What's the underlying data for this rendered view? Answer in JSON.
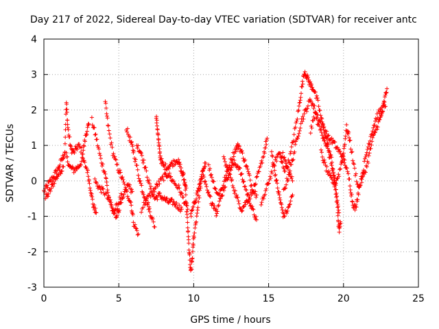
{
  "chart_data": {
    "type": "scatter",
    "title": "Day 217 of 2022, Sidereal Day-to-day VTEC variation (SDTVAR) for receiver antc",
    "xlabel": "GPS time / hours",
    "ylabel": "SDTVAR / TECUs",
    "xlim": [
      0,
      25
    ],
    "ylim": [
      -3,
      4
    ],
    "xticks": [
      0,
      5,
      10,
      15,
      20,
      25
    ],
    "yticks": [
      -3,
      -2,
      -1,
      0,
      1,
      2,
      3,
      4
    ],
    "grid": true,
    "marker": "+",
    "color": "#ff0000",
    "series": [
      {
        "name": "SDTVAR",
        "tracks": [
          [
            [
              0,
              -0.3
            ],
            [
              0.3,
              -0.1
            ],
            [
              0.6,
              0.1
            ],
            [
              0.9,
              0.3
            ],
            [
              1.2,
              0.6
            ],
            [
              1.4,
              0.8
            ]
          ],
          [
            [
              0.1,
              -0.5
            ],
            [
              0.4,
              -0.3
            ],
            [
              0.7,
              0.0
            ],
            [
              1.0,
              0.2
            ],
            [
              1.3,
              0.4
            ]
          ],
          [
            [
              1.4,
              0.9
            ],
            [
              1.5,
              2.2
            ],
            [
              1.6,
              1.5
            ],
            [
              1.8,
              0.9
            ],
            [
              2.0,
              0.8
            ],
            [
              2.3,
              1.0
            ],
            [
              2.6,
              0.8
            ],
            [
              2.8,
              1.3
            ],
            [
              3.0,
              1.6
            ]
          ],
          [
            [
              1.5,
              0.7
            ],
            [
              1.7,
              0.4
            ],
            [
              2.0,
              0.3
            ],
            [
              2.3,
              0.4
            ],
            [
              2.6,
              0.6
            ],
            [
              2.9,
              0.3
            ],
            [
              3.1,
              -0.2
            ],
            [
              3.3,
              -0.7
            ],
            [
              3.5,
              -0.9
            ]
          ],
          [
            [
              3.2,
              1.7
            ],
            [
              3.5,
              1.2
            ],
            [
              3.8,
              0.6
            ],
            [
              4.1,
              0.2
            ],
            [
              4.3,
              -0.4
            ],
            [
              4.6,
              -0.9
            ],
            [
              4.9,
              -0.7
            ],
            [
              5.2,
              -0.4
            ]
          ],
          [
            [
              4.1,
              2.2
            ],
            [
              4.3,
              1.5
            ],
            [
              4.6,
              0.8
            ],
            [
              4.9,
              0.4
            ],
            [
              5.2,
              0.1
            ],
            [
              5.5,
              -0.3
            ],
            [
              5.8,
              -0.6
            ],
            [
              6.0,
              -1.2
            ],
            [
              6.3,
              -1.5
            ]
          ],
          [
            [
              3.4,
              0.0
            ],
            [
              3.7,
              -0.2
            ],
            [
              4.0,
              -0.3
            ],
            [
              4.4,
              -0.6
            ],
            [
              4.8,
              -1.0
            ],
            [
              5.0,
              -0.8
            ],
            [
              5.3,
              -0.5
            ],
            [
              5.6,
              -0.1
            ],
            [
              5.9,
              -0.3
            ]
          ],
          [
            [
              5.5,
              1.5
            ],
            [
              5.8,
              1.1
            ],
            [
              6.0,
              0.8
            ],
            [
              6.3,
              0.2
            ],
            [
              6.6,
              -0.3
            ],
            [
              6.9,
              -0.6
            ],
            [
              7.1,
              -0.9
            ],
            [
              7.4,
              -1.3
            ]
          ],
          [
            [
              6.2,
              1.0
            ],
            [
              6.5,
              0.8
            ],
            [
              6.8,
              0.3
            ],
            [
              7.1,
              -0.2
            ],
            [
              7.4,
              -0.5
            ],
            [
              7.7,
              -0.4
            ],
            [
              8.0,
              -0.5
            ],
            [
              8.3,
              -0.6
            ],
            [
              8.6,
              -0.6
            ],
            [
              8.9,
              -0.7
            ],
            [
              9.2,
              -0.8
            ]
          ],
          [
            [
              7.5,
              1.8
            ],
            [
              7.6,
              1.4
            ],
            [
              7.7,
              0.9
            ],
            [
              7.8,
              0.6
            ],
            [
              8.0,
              0.4
            ],
            [
              8.3,
              0.4
            ],
            [
              8.6,
              0.5
            ],
            [
              8.9,
              0.6
            ],
            [
              9.1,
              0.4
            ],
            [
              9.3,
              0.1
            ],
            [
              9.5,
              -0.2
            ]
          ],
          [
            [
              6.5,
              -0.8
            ],
            [
              6.9,
              -0.5
            ],
            [
              7.3,
              -0.3
            ],
            [
              7.6,
              -0.1
            ],
            [
              8.0,
              0.1
            ],
            [
              8.3,
              0.2
            ],
            [
              8.6,
              0.0
            ],
            [
              9.0,
              -0.2
            ],
            [
              9.3,
              -0.5
            ],
            [
              9.6,
              -0.8
            ]
          ],
          [
            [
              9.3,
              0.3
            ],
            [
              9.5,
              -0.6
            ],
            [
              9.6,
              -1.3
            ],
            [
              9.7,
              -2.0
            ],
            [
              9.8,
              -2.6
            ],
            [
              9.9,
              -2.2
            ],
            [
              10.0,
              -1.6
            ],
            [
              10.2,
              -1.0
            ],
            [
              10.4,
              -0.3
            ],
            [
              10.6,
              0.3
            ],
            [
              10.8,
              0.5
            ]
          ],
          [
            [
              9.8,
              -1.0
            ],
            [
              10.0,
              -0.7
            ],
            [
              10.2,
              -0.4
            ],
            [
              10.4,
              -0.1
            ],
            [
              10.6,
              0.2
            ],
            [
              10.9,
              -0.3
            ],
            [
              11.2,
              -0.6
            ],
            [
              11.5,
              -0.8
            ]
          ],
          [
            [
              11.0,
              0.4
            ],
            [
              11.3,
              0.0
            ],
            [
              11.6,
              -0.4
            ],
            [
              11.9,
              -0.2
            ],
            [
              12.2,
              0.2
            ],
            [
              12.5,
              0.6
            ],
            [
              12.8,
              0.9
            ],
            [
              13.0,
              1.0
            ],
            [
              13.3,
              0.7
            ],
            [
              13.6,
              0.3
            ],
            [
              13.9,
              -0.2
            ],
            [
              14.2,
              -0.4
            ]
          ],
          [
            [
              11.5,
              -0.9
            ],
            [
              11.8,
              -0.5
            ],
            [
              12.1,
              -0.1
            ],
            [
              12.4,
              0.3
            ],
            [
              12.7,
              0.5
            ],
            [
              13.0,
              0.4
            ],
            [
              13.3,
              0.0
            ],
            [
              13.6,
              -0.4
            ],
            [
              13.9,
              -0.8
            ],
            [
              14.2,
              -1.1
            ]
          ],
          [
            [
              12.0,
              0.6
            ],
            [
              12.3,
              0.3
            ],
            [
              12.6,
              -0.1
            ],
            [
              12.9,
              -0.5
            ],
            [
              13.2,
              -0.8
            ],
            [
              13.5,
              -0.6
            ],
            [
              13.8,
              -0.4
            ],
            [
              14.1,
              -0.1
            ],
            [
              14.4,
              0.3
            ],
            [
              14.7,
              0.8
            ],
            [
              14.9,
              1.2
            ]
          ],
          [
            [
              14.5,
              -0.7
            ],
            [
              14.8,
              -0.3
            ],
            [
              15.1,
              0.1
            ],
            [
              15.4,
              0.5
            ],
            [
              15.7,
              0.8
            ],
            [
              16.0,
              0.7
            ],
            [
              16.3,
              0.3
            ],
            [
              16.6,
              0.0
            ]
          ],
          [
            [
              15.2,
              0.8
            ],
            [
              15.4,
              0.3
            ],
            [
              15.6,
              -0.2
            ],
            [
              15.8,
              -0.6
            ],
            [
              16.0,
              -1.0
            ],
            [
              16.3,
              -0.8
            ],
            [
              16.6,
              -0.4
            ]
          ],
          [
            [
              15.8,
              0.6
            ],
            [
              16.1,
              0.3
            ],
            [
              16.4,
              0.6
            ],
            [
              16.7,
              1.3
            ],
            [
              17.0,
              2.0
            ],
            [
              17.2,
              2.6
            ],
            [
              17.4,
              3.1
            ],
            [
              17.6,
              2.9
            ],
            [
              17.8,
              2.7
            ],
            [
              18.0,
              2.6
            ],
            [
              18.3,
              2.2
            ],
            [
              18.6,
              1.6
            ],
            [
              18.9,
              1.1
            ],
            [
              19.2,
              0.6
            ],
            [
              19.4,
              0.0
            ],
            [
              19.6,
              -0.8
            ],
            [
              19.7,
              -1.4
            ],
            [
              19.8,
              -1.2
            ]
          ],
          [
            [
              16.0,
              -0.3
            ],
            [
              16.3,
              0.1
            ],
            [
              16.6,
              0.6
            ],
            [
              16.9,
              1.2
            ],
            [
              17.2,
              1.7
            ],
            [
              17.5,
              2.0
            ],
            [
              17.8,
              2.3
            ],
            [
              18.1,
              2.0
            ],
            [
              18.4,
              1.7
            ],
            [
              18.7,
              1.5
            ],
            [
              19.0,
              1.2
            ],
            [
              19.3,
              1.1
            ],
            [
              19.6,
              0.9
            ],
            [
              19.9,
              0.7
            ],
            [
              20.1,
              0.5
            ],
            [
              20.4,
              0.0
            ],
            [
              20.6,
              -0.6
            ],
            [
              20.8,
              -0.8
            ],
            [
              21.0,
              -0.3
            ],
            [
              21.3,
              0.3
            ],
            [
              21.6,
              0.9
            ],
            [
              21.9,
              1.4
            ],
            [
              22.2,
              1.8
            ],
            [
              22.5,
              2.0
            ],
            [
              22.8,
              2.1
            ]
          ],
          [
            [
              18.5,
              0.8
            ],
            [
              18.8,
              0.4
            ],
            [
              19.1,
              0.1
            ],
            [
              19.4,
              -0.1
            ],
            [
              19.7,
              0.2
            ],
            [
              20.0,
              0.8
            ],
            [
              20.2,
              1.5
            ],
            [
              20.4,
              1.2
            ],
            [
              20.7,
              0.4
            ],
            [
              21.0,
              -0.2
            ],
            [
              21.3,
              0.1
            ],
            [
              21.6,
              0.5
            ],
            [
              21.9,
              1.1
            ],
            [
              22.2,
              1.5
            ],
            [
              22.5,
              1.8
            ],
            [
              22.7,
              2.2
            ],
            [
              22.9,
              2.6
            ]
          ],
          [
            [
              17.8,
              1.4
            ],
            [
              18.1,
              1.9
            ],
            [
              18.4,
              1.5
            ],
            [
              18.7,
              1.2
            ],
            [
              19.0,
              0.8
            ],
            [
              19.3,
              0.3
            ],
            [
              19.5,
              -0.3
            ],
            [
              19.7,
              -0.9
            ]
          ]
        ]
      }
    ]
  }
}
